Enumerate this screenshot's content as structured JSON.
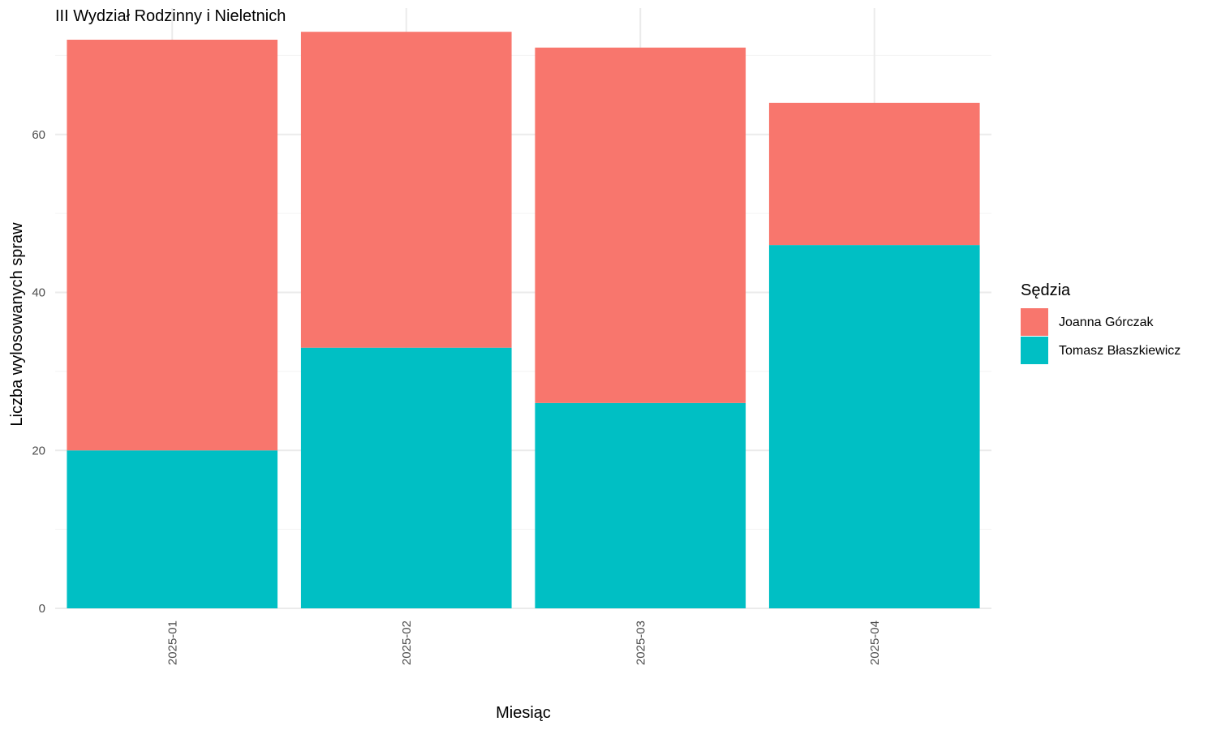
{
  "chart_data": {
    "type": "bar",
    "stacked": true,
    "title": "III Wydział Rodzinny i Nieletnich",
    "xlabel": "Miesiąc",
    "ylabel": "Liczba wylosowanych spraw",
    "categories": [
      "2025-01",
      "2025-02",
      "2025-03",
      "2025-04"
    ],
    "series": [
      {
        "name": "Tomasz Błaszkiewicz",
        "values": [
          20,
          33,
          26,
          46
        ],
        "color": "#00BFC4"
      },
      {
        "name": "Joanna Górczak",
        "values": [
          52,
          40,
          45,
          18
        ],
        "color": "#F8766D"
      }
    ],
    "ylim": [
      0,
      76
    ],
    "yticks": [
      0,
      20,
      40,
      60
    ],
    "grid": true,
    "x_tick_rotation": 90,
    "legend": {
      "title": "Sędzia",
      "position": "right",
      "entries": [
        {
          "label": "Joanna Górczak",
          "color": "#F8766D"
        },
        {
          "label": "Tomasz Błaszkiewicz",
          "color": "#00BFC4"
        }
      ]
    }
  }
}
